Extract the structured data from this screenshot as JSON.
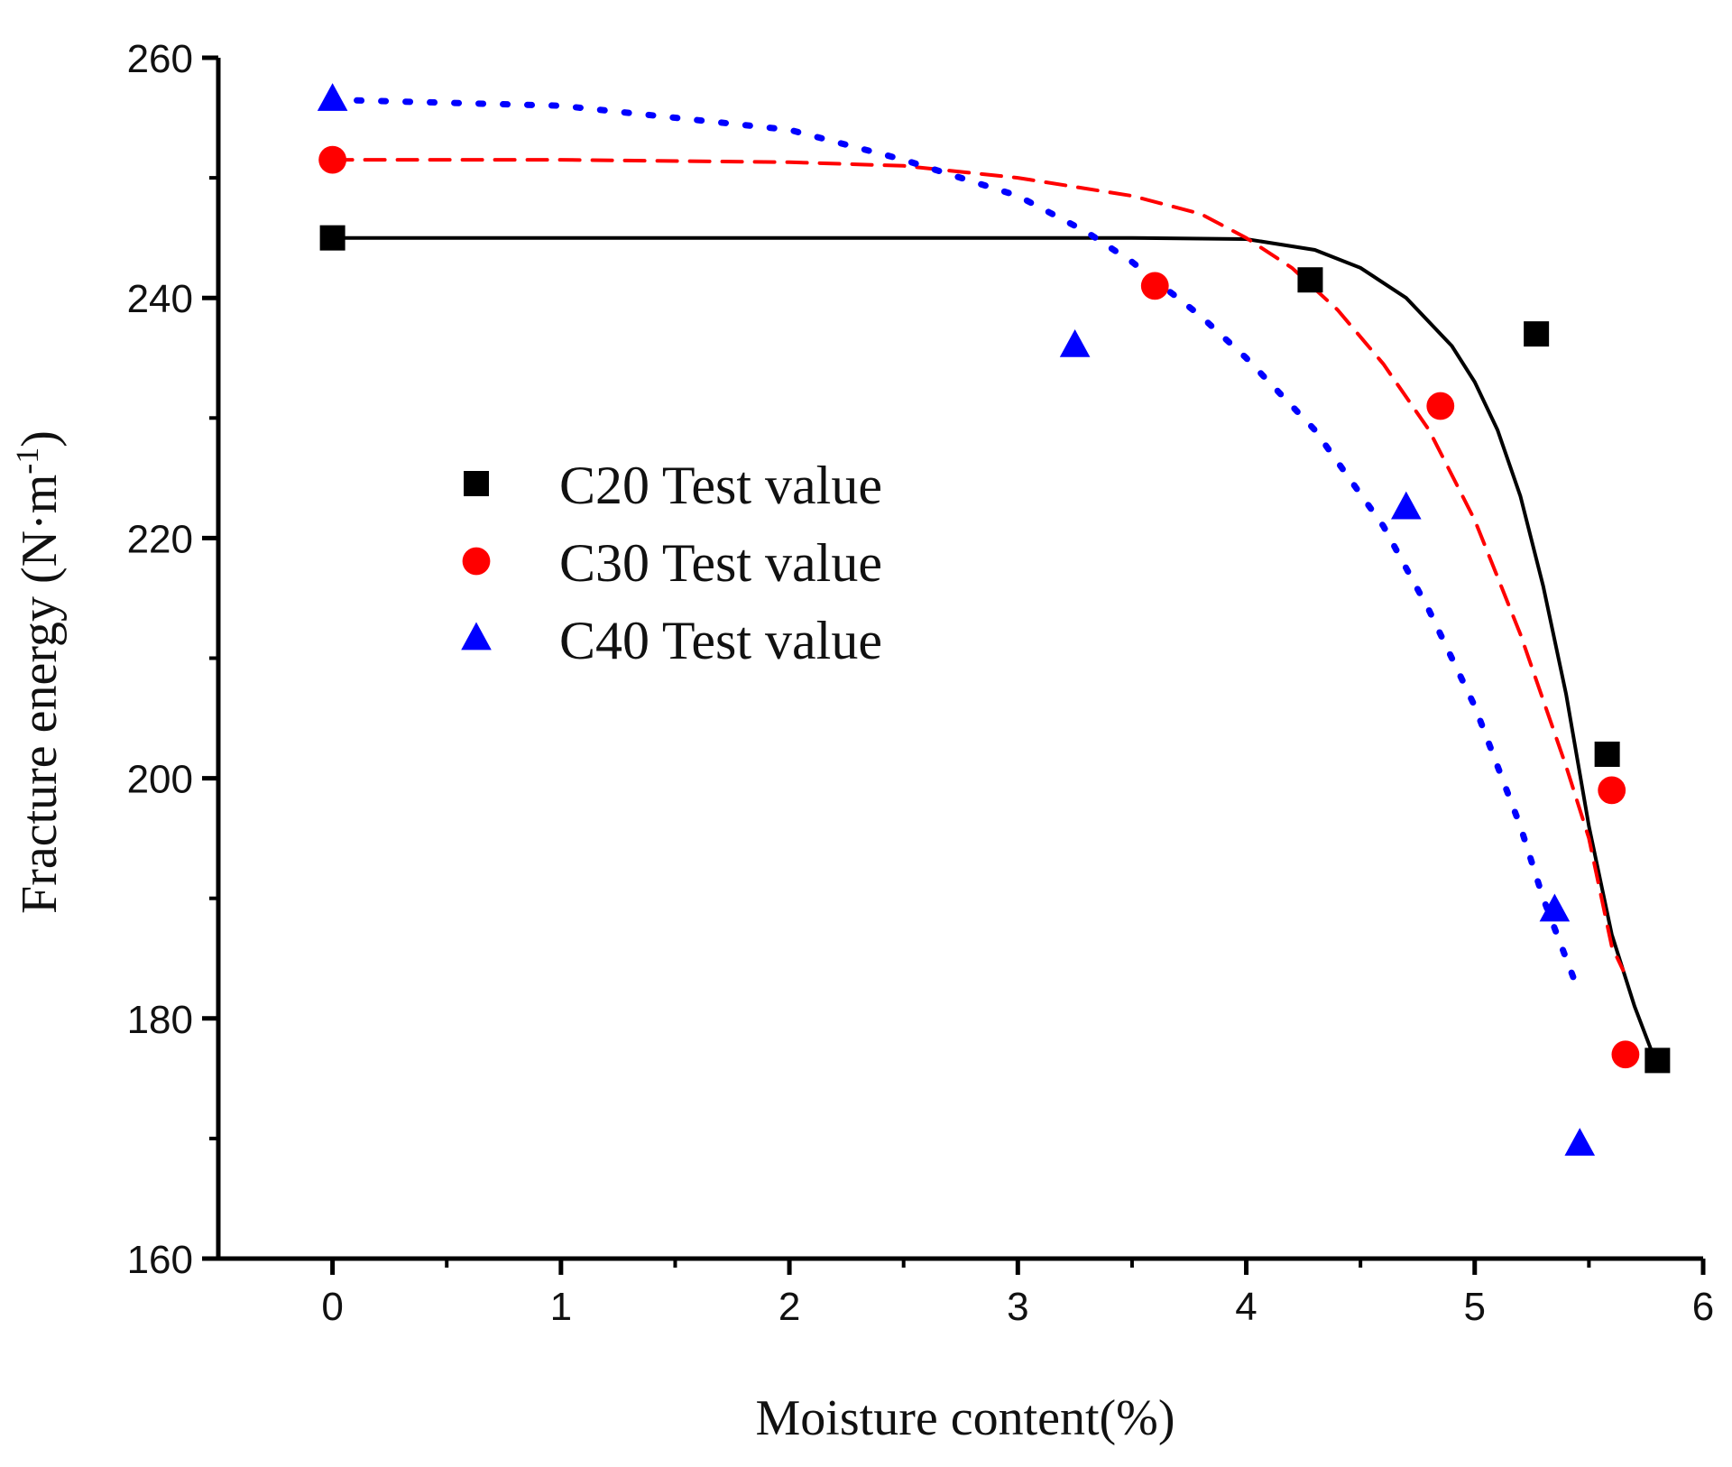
{
  "chart_data": {
    "type": "scatter",
    "title": "",
    "xlabel": "Moisture content(%)",
    "ylabel_main": "Fracture energy (N·m",
    "ylabel_sup": "-1",
    "ylabel_close": ")",
    "xlim": [
      -0.5,
      6
    ],
    "ylim": [
      160,
      260
    ],
    "xticks": [
      0,
      1,
      2,
      3,
      4,
      5,
      6
    ],
    "yticks": [
      160,
      180,
      200,
      220,
      240,
      260
    ],
    "grid": false,
    "legend_position": "upper-left",
    "series": [
      {
        "name": "C20 Test value",
        "marker": "square",
        "color": "#000000",
        "fit_style": "solid",
        "points": [
          [
            0,
            245
          ],
          [
            4.28,
            241.5
          ],
          [
            5.27,
            237
          ],
          [
            5.58,
            202
          ],
          [
            5.8,
            176.5
          ]
        ],
        "fit_curve": [
          [
            0,
            245
          ],
          [
            1,
            245
          ],
          [
            2,
            245
          ],
          [
            3,
            245
          ],
          [
            3.5,
            245
          ],
          [
            4,
            244.9
          ],
          [
            4.3,
            244
          ],
          [
            4.5,
            242.5
          ],
          [
            4.7,
            240
          ],
          [
            4.9,
            236
          ],
          [
            5.0,
            233
          ],
          [
            5.1,
            229
          ],
          [
            5.2,
            223.5
          ],
          [
            5.3,
            216
          ],
          [
            5.4,
            207
          ],
          [
            5.5,
            196
          ],
          [
            5.6,
            187
          ],
          [
            5.7,
            181
          ],
          [
            5.8,
            176
          ]
        ]
      },
      {
        "name": "C30 Test value",
        "marker": "circle",
        "color": "#ff0000",
        "fit_style": "dashed",
        "points": [
          [
            0,
            251.5
          ],
          [
            3.6,
            241
          ],
          [
            4.85,
            231
          ],
          [
            5.6,
            199
          ],
          [
            5.66,
            177
          ]
        ],
        "fit_curve": [
          [
            0,
            251.5
          ],
          [
            1,
            251.5
          ],
          [
            2,
            251.3
          ],
          [
            2.5,
            251
          ],
          [
            3,
            250
          ],
          [
            3.5,
            248.5
          ],
          [
            3.8,
            247
          ],
          [
            4,
            245
          ],
          [
            4.2,
            242.5
          ],
          [
            4.4,
            239
          ],
          [
            4.6,
            234.5
          ],
          [
            4.8,
            229
          ],
          [
            5.0,
            221.5
          ],
          [
            5.2,
            212
          ],
          [
            5.4,
            201
          ],
          [
            5.5,
            195
          ],
          [
            5.6,
            186
          ],
          [
            5.65,
            184
          ]
        ]
      },
      {
        "name": "C40 Test value",
        "marker": "triangle",
        "color": "#0000ff",
        "fit_style": "dotted",
        "points": [
          [
            0,
            256.5
          ],
          [
            3.25,
            236
          ],
          [
            4.7,
            222.5
          ],
          [
            5.35,
            189
          ],
          [
            5.46,
            169.5
          ]
        ],
        "fit_curve": [
          [
            0,
            256.5
          ],
          [
            1,
            256
          ],
          [
            1.5,
            255
          ],
          [
            2,
            254
          ],
          [
            2.5,
            251.5
          ],
          [
            3,
            248.5
          ],
          [
            3.3,
            245.5
          ],
          [
            3.5,
            243
          ],
          [
            3.8,
            238.5
          ],
          [
            4,
            235
          ],
          [
            4.3,
            229
          ],
          [
            4.6,
            221
          ],
          [
            4.8,
            214
          ],
          [
            5.0,
            206
          ],
          [
            5.2,
            196
          ],
          [
            5.3,
            190
          ],
          [
            5.4,
            185
          ],
          [
            5.46,
            182
          ]
        ]
      }
    ]
  }
}
